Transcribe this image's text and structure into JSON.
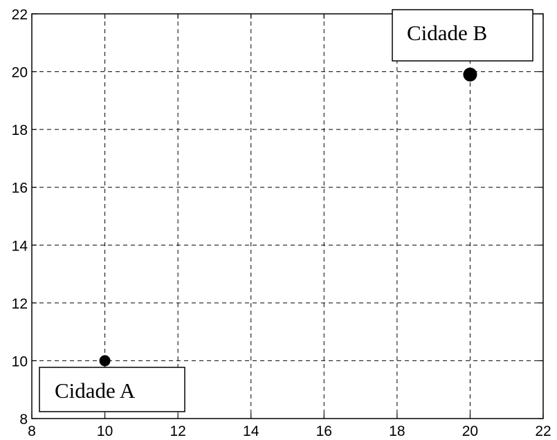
{
  "chart_data": {
    "type": "scatter",
    "title": "",
    "xlabel": "",
    "ylabel": "",
    "xlim": [
      8,
      22
    ],
    "ylim": [
      8,
      22
    ],
    "xticks": [
      8,
      10,
      12,
      14,
      16,
      18,
      20,
      22
    ],
    "yticks": [
      8,
      10,
      12,
      14,
      16,
      18,
      20,
      22
    ],
    "grid": true,
    "grid_style": "dashed",
    "marker_color": "#000000",
    "points": [
      {
        "label": "Cidade A",
        "x": 10,
        "y": 10
      },
      {
        "label": "Cidade B",
        "x": 20,
        "y": 19.9
      }
    ],
    "annotations": [
      {
        "text": "Cidade A",
        "placement": "bottom-left"
      },
      {
        "text": "Cidade B",
        "placement": "top-right"
      }
    ]
  }
}
